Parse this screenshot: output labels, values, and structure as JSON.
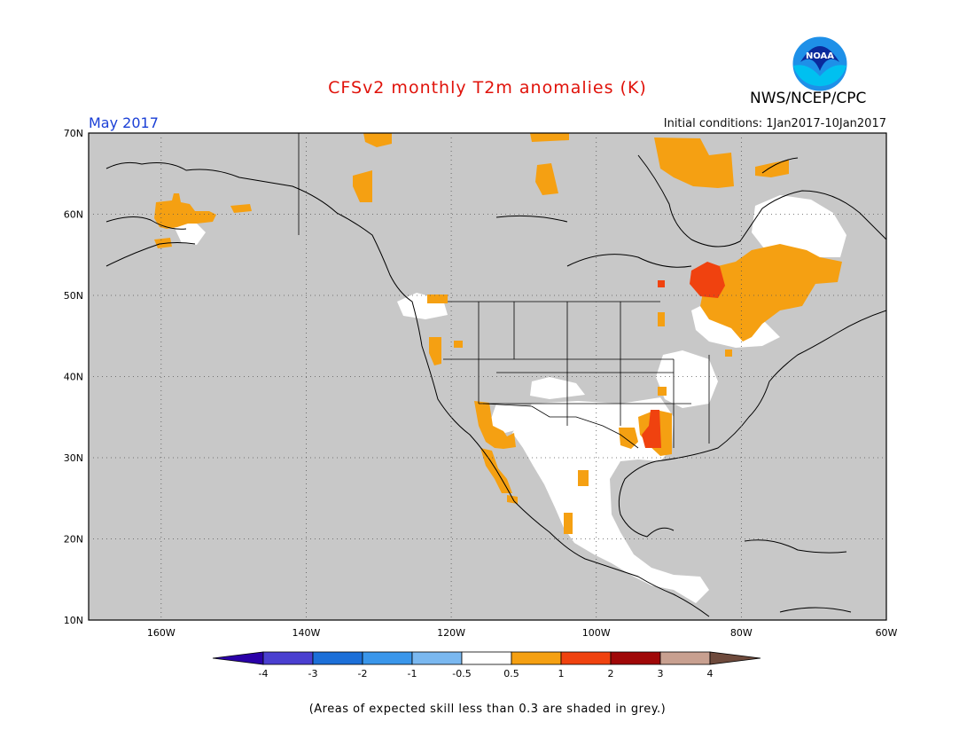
{
  "title": "CFSv2 monthly T2m anomalies (K)",
  "period": "May 2017",
  "initial_conditions": "Initial conditions: 1Jan2017-10Jan2017",
  "agency": "NWS/NCEP/CPC",
  "logo_text": "NOAA",
  "footnote": "(Areas of expected skill less than 0.3 are shaded in grey.)",
  "colors": {
    "title": "#e0120a",
    "period": "#1a3fd6",
    "low_skill": "#c8c8c8",
    "neutral": "#ffffff",
    "anom_0_5_1": "#f5a012",
    "anom_1_2": "#f0420f",
    "ocean_border": "#000000"
  },
  "map": {
    "lon_range": [
      -170,
      -60
    ],
    "lat_range": [
      10,
      70
    ],
    "lat_labels": [
      "10N",
      "20N",
      "30N",
      "40N",
      "50N",
      "60N",
      "70N"
    ],
    "lon_labels": [
      "160W",
      "140W",
      "120W",
      "100W",
      "80W",
      "60W"
    ]
  },
  "colorbar": {
    "labels": [
      "-4",
      "-3",
      "-2",
      "-1",
      "-0.5",
      "0.5",
      "1",
      "2",
      "3",
      "4"
    ],
    "colors": [
      "#2a00a8",
      "#4a3fd0",
      "#1c6fd8",
      "#3a96ea",
      "#7ab8f0",
      "#ffffff",
      "#f5a012",
      "#f0420f",
      "#a00808",
      "#c8a090",
      "#6e4a3c"
    ]
  }
}
